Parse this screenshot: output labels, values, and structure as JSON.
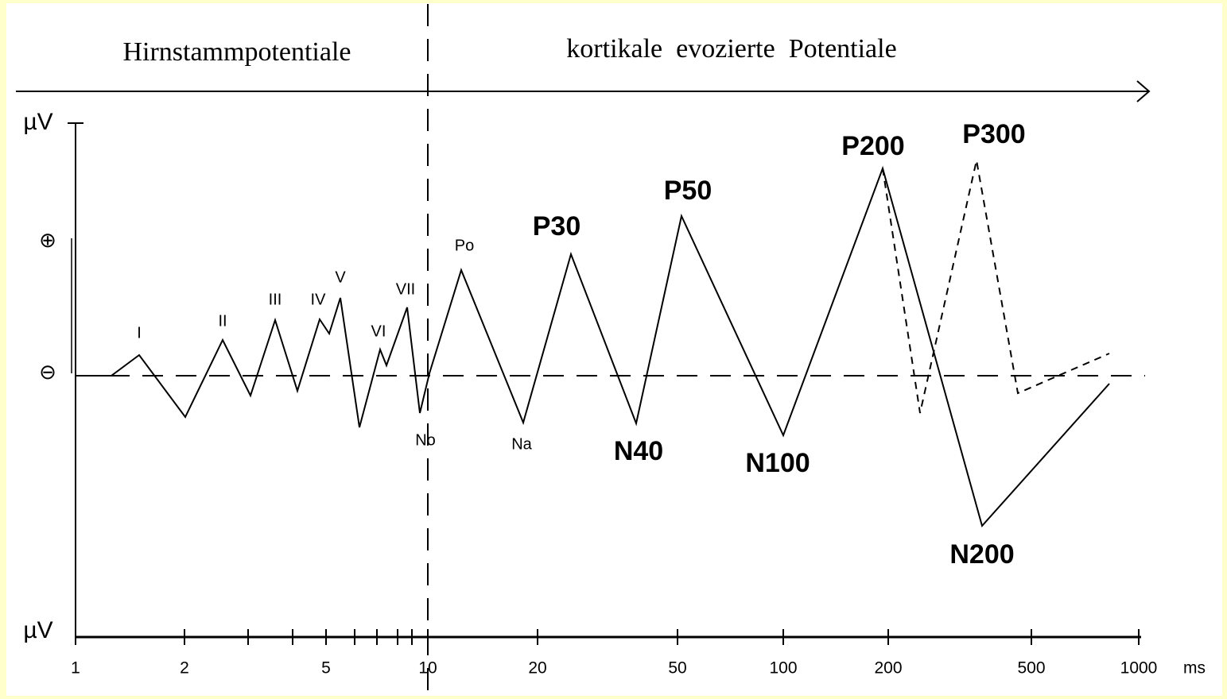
{
  "header": {
    "left": "Hirnstammpotentiale",
    "right": "kortikale  evozierte  Potentiale"
  },
  "y_axis": {
    "top": "µV",
    "bottom": "µV",
    "positive": "⊕",
    "negative": "⊖"
  },
  "x_axis": {
    "ticks": [
      "1",
      "2",
      "5",
      "10",
      "20",
      "50",
      "100",
      "200",
      "500",
      "1000"
    ],
    "unit": "ms"
  },
  "peaks": {
    "small": [
      "I",
      "II",
      "III",
      "IV",
      "V",
      "VI",
      "VII",
      "Po",
      "No",
      "Na"
    ],
    "big": [
      "P30",
      "P50",
      "P200",
      "P300",
      "N40",
      "N100",
      "N200"
    ]
  }
}
